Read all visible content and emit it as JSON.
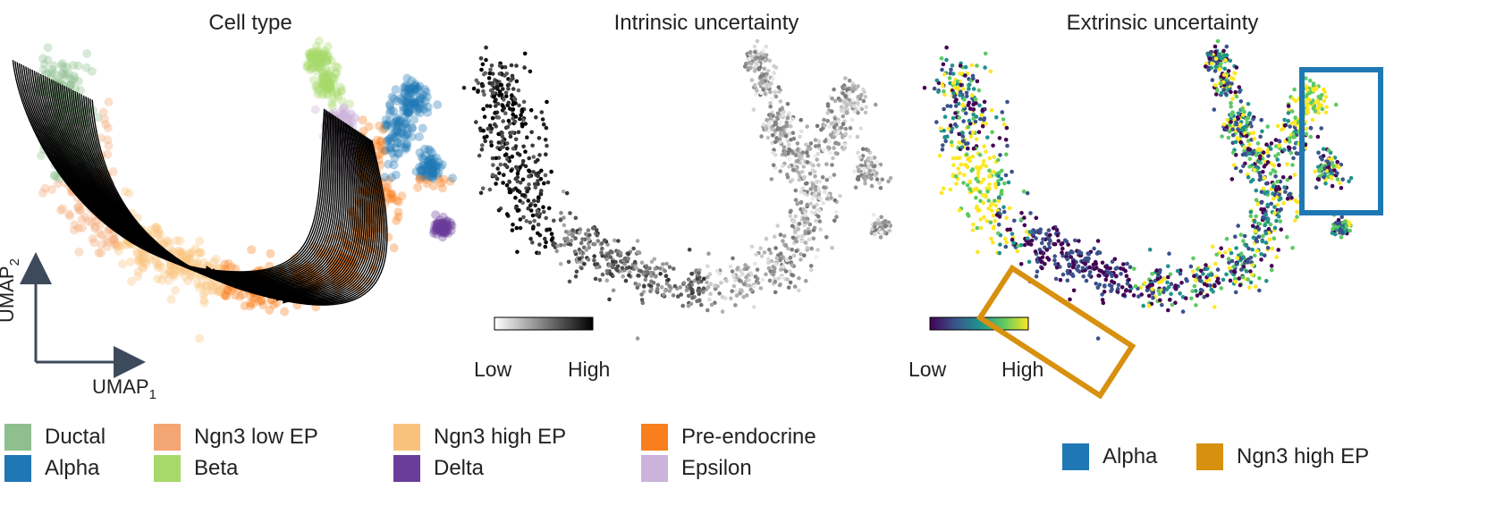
{
  "panels": {
    "cell_type": {
      "title": "Cell type"
    },
    "intrinsic": {
      "title": "Intrinsic uncertainty",
      "colorbar": {
        "low": "Low",
        "high": "High"
      }
    },
    "extrinsic": {
      "title": "Extrinsic uncertainty",
      "colorbar": {
        "low": "Low",
        "high": "High"
      }
    }
  },
  "axes": {
    "x_label": "UMAP",
    "x_sub": "1",
    "y_label": "UMAP",
    "y_sub": "2"
  },
  "cell_type_legend": [
    {
      "label": "Ductal",
      "color": "#8fbf8f"
    },
    {
      "label": "Ngn3 low EP",
      "color": "#f4a574"
    },
    {
      "label": "Ngn3 high EP",
      "color": "#f9c27c"
    },
    {
      "label": "Pre-endocrine",
      "color": "#f97f1e"
    },
    {
      "label": "Alpha",
      "color": "#1f78b4"
    },
    {
      "label": "Beta",
      "color": "#a6d96a"
    },
    {
      "label": "Delta",
      "color": "#6a3d9a"
    },
    {
      "label": "Epsilon",
      "color": "#cbb3db"
    }
  ],
  "highlight_legend": [
    {
      "label": "Alpha",
      "color": "#1f78b4"
    },
    {
      "label": "Ngn3 high EP",
      "color": "#d8900f"
    }
  ],
  "colors": {
    "axis_arrow": "#3d4a5c",
    "stream": "#000000",
    "viridis": [
      "#440154",
      "#3b528b",
      "#21918c",
      "#5ec962",
      "#fde725"
    ]
  }
}
